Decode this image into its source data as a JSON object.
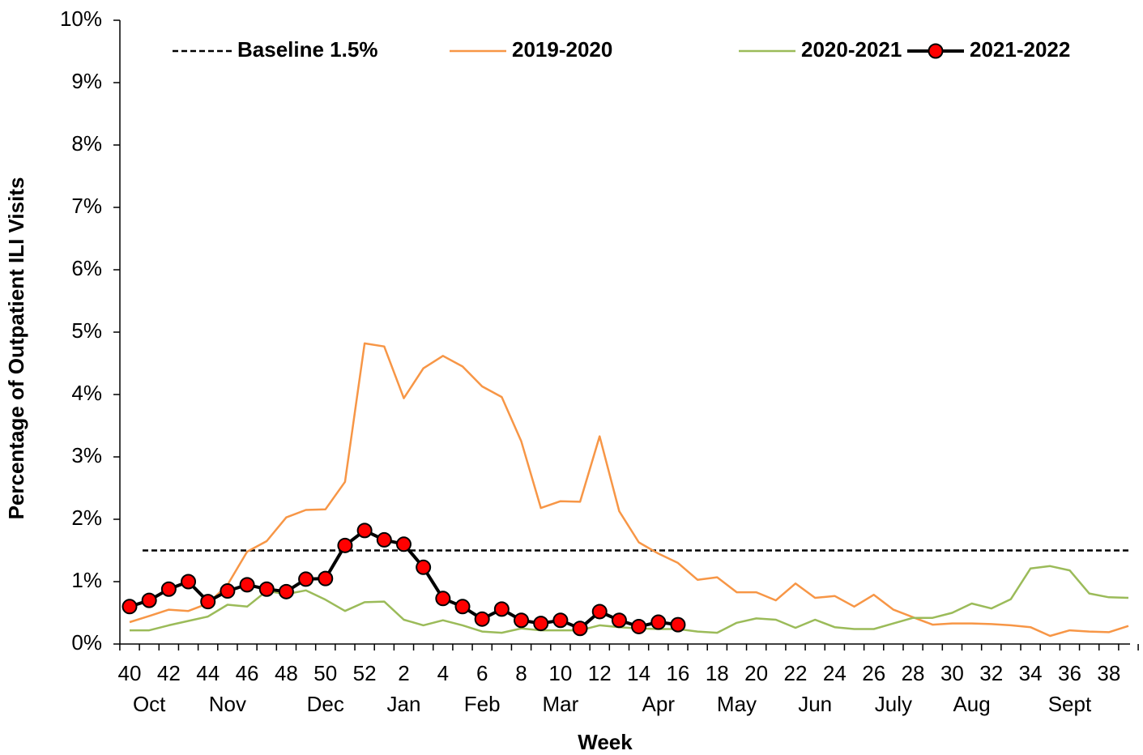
{
  "chart_data": {
    "type": "line",
    "x_label": "Week",
    "y_label": "Percentage of Outpatient ILI Visits",
    "categories": [
      40,
      null,
      42,
      null,
      44,
      null,
      46,
      null,
      48,
      null,
      50,
      null,
      52,
      null,
      2,
      null,
      4,
      null,
      6,
      null,
      8,
      null,
      10,
      null,
      12,
      null,
      14,
      null,
      16,
      null,
      18,
      null,
      20,
      null,
      22,
      null,
      24,
      null,
      26,
      null,
      28,
      null,
      30,
      null,
      32,
      null,
      34,
      null,
      36,
      null,
      38,
      null
    ],
    "months": [
      null,
      "Oct",
      null,
      null,
      null,
      "Nov",
      null,
      null,
      null,
      null,
      "Dec",
      null,
      null,
      null,
      "Jan",
      null,
      null,
      null,
      "Feb",
      null,
      null,
      null,
      "Mar",
      null,
      null,
      null,
      null,
      "Apr",
      null,
      null,
      null,
      "May",
      null,
      null,
      null,
      "Jun",
      null,
      null,
      null,
      "July",
      null,
      null,
      null,
      "Aug",
      null,
      null,
      null,
      null,
      "Sept",
      null,
      null,
      null
    ],
    "baseline": {
      "name": "Baseline 1.5%",
      "value": 1.5,
      "color": "#000000"
    },
    "series": [
      {
        "name": "2019-2020",
        "color": "#f79646",
        "values": [
          0.35,
          0.45,
          0.55,
          0.53,
          0.65,
          0.95,
          1.48,
          1.65,
          2.03,
          2.15,
          2.16,
          2.6,
          4.82,
          4.77,
          3.94,
          4.42,
          4.62,
          4.45,
          4.13,
          3.96,
          3.25,
          2.18,
          2.29,
          2.28,
          3.33,
          2.13,
          1.63,
          1.45,
          1.3,
          1.03,
          1.07,
          0.83,
          0.83,
          0.7,
          0.97,
          0.74,
          0.77,
          0.6,
          0.79,
          0.55,
          0.43,
          0.31,
          0.33,
          0.33,
          0.32,
          0.3,
          0.27,
          0.13,
          0.22,
          0.2,
          0.19,
          0.29
        ]
      },
      {
        "name": "2020-2021",
        "color": "#9bbb59",
        "values": [
          0.22,
          0.22,
          0.3,
          0.37,
          0.44,
          0.63,
          0.6,
          0.85,
          0.8,
          0.86,
          0.71,
          0.53,
          0.67,
          0.68,
          0.39,
          0.3,
          0.38,
          0.3,
          0.2,
          0.18,
          0.25,
          0.22,
          0.22,
          0.22,
          0.3,
          0.27,
          0.25,
          0.24,
          0.24,
          0.2,
          0.18,
          0.34,
          0.41,
          0.39,
          0.26,
          0.39,
          0.27,
          0.24,
          0.24,
          0.33,
          0.42,
          0.42,
          0.5,
          0.65,
          0.57,
          0.72,
          1.21,
          1.25,
          1.18,
          0.81,
          0.75,
          0.74
        ]
      },
      {
        "name": "2021-2022",
        "color": "#000000",
        "marker_color": "#ff0000",
        "values": [
          0.6,
          0.7,
          0.88,
          1.0,
          0.68,
          0.85,
          0.95,
          0.88,
          0.84,
          1.04,
          1.05,
          1.58,
          1.82,
          1.67,
          1.6,
          1.23,
          0.73,
          0.6,
          0.4,
          0.56,
          0.38,
          0.33,
          0.38,
          0.25,
          0.52,
          0.38,
          0.28,
          0.35,
          0.31,
          null,
          null,
          null,
          null,
          null,
          null,
          null,
          null,
          null,
          null,
          null,
          null,
          null,
          null,
          null,
          null,
          null,
          null,
          null,
          null,
          null,
          null,
          null
        ]
      }
    ],
    "ylim": [
      0,
      10
    ],
    "yticks": [
      {
        "value": 0,
        "label": "0%"
      },
      {
        "value": 1,
        "label": "1%"
      },
      {
        "value": 2,
        "label": "2%"
      },
      {
        "value": 3,
        "label": "3%"
      },
      {
        "value": 4,
        "label": "4%"
      },
      {
        "value": 5,
        "label": "5%"
      },
      {
        "value": 6,
        "label": "6%"
      },
      {
        "value": 7,
        "label": "7%"
      },
      {
        "value": 8,
        "label": "8%"
      },
      {
        "value": 9,
        "label": "9%"
      },
      {
        "value": 10,
        "label": "10%"
      }
    ],
    "legend": "top"
  }
}
